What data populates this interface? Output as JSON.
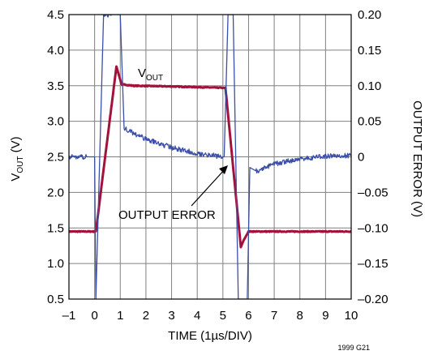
{
  "chart_data": {
    "type": "line",
    "xlabel": "TIME (1µs/DIV)",
    "ylabel_left": "V",
    "ylabel_left_sub": "OUT",
    "ylabel_left_unit": " (V)",
    "ylabel_right": "OUTPUT ERROR (V)",
    "figure_id": "1999 G21",
    "xlim": [
      -1,
      10
    ],
    "ylim_left": [
      0.5,
      4.5
    ],
    "ylim_right": [
      -0.2,
      0.2
    ],
    "grid": true,
    "x_ticks": [
      "–1",
      "0",
      "1",
      "2",
      "3",
      "4",
      "5",
      "6",
      "7",
      "8",
      "9",
      "10"
    ],
    "y_ticks_left": [
      "0.5",
      "1.0",
      "1.5",
      "2.0",
      "2.5",
      "3.0",
      "3.5",
      "4.0",
      "4.5"
    ],
    "y_ticks_right": [
      "–0.20",
      "–0.15",
      "–0.10",
      "–0.05",
      "0",
      "0.05",
      "0.10",
      "0.15",
      "0.20"
    ],
    "annotations": {
      "vout_label": "V",
      "vout_label_sub": "OUT",
      "error_label": "OUTPUT ERROR"
    },
    "colors": {
      "vout": "#a3123a",
      "error": "#3b4fa8",
      "grid": "#808080"
    },
    "series": [
      {
        "name": "V_OUT",
        "axis": "left",
        "x": [
          -1.0,
          0.05,
          0.85,
          1.05,
          1.5,
          3.0,
          5.0,
          5.1,
          5.7,
          5.8,
          6.0,
          10.0
        ],
        "y": [
          1.45,
          1.45,
          3.77,
          3.52,
          3.5,
          3.49,
          3.47,
          3.47,
          1.23,
          1.32,
          1.45,
          1.45
        ]
      },
      {
        "name": "OUTPUT ERROR",
        "axis": "right",
        "x": [
          -1.0,
          -0.3,
          0.0,
          0.05,
          0.35,
          0.7,
          0.8,
          0.85,
          1.0,
          1.15,
          2.0,
          3.0,
          4.0,
          5.0,
          5.05,
          5.2,
          5.4,
          5.6,
          5.8,
          5.95,
          6.05,
          6.3,
          7.0,
          8.0,
          9.0,
          10.0
        ],
        "y": [
          0.0,
          0.0,
          0.0,
          -0.2,
          0.2,
          0.2,
          0.2,
          0.2,
          0.2,
          0.04,
          0.025,
          0.013,
          0.005,
          0.0,
          0.0,
          0.2,
          0.2,
          -0.2,
          -0.2,
          -0.2,
          -0.015,
          -0.02,
          -0.01,
          -0.003,
          0.001,
          0.002
        ]
      }
    ]
  }
}
